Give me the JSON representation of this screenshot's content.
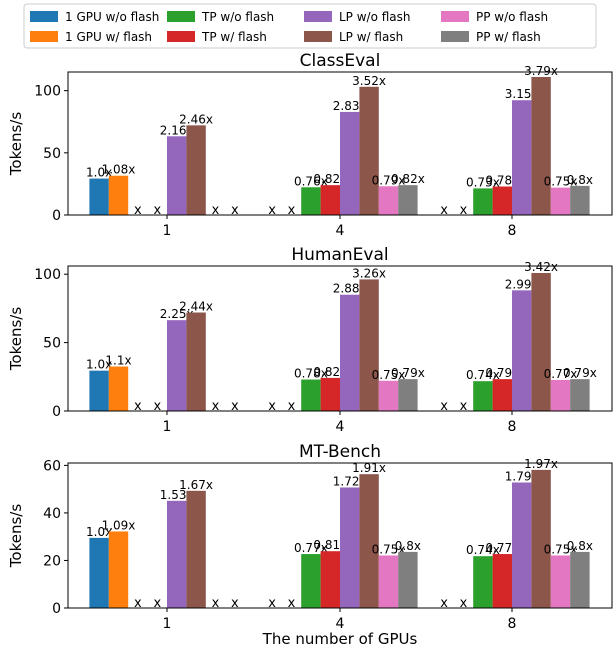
{
  "chart_data": {
    "type": "bar",
    "legend": {
      "placement": "top",
      "entries": [
        {
          "name": "1 GPU w/o flash",
          "color": "#1f77b4"
        },
        {
          "name": "1 GPU w/ flash",
          "color": "#ff7f0e"
        },
        {
          "name": "TP w/o flash",
          "color": "#2ca02c"
        },
        {
          "name": "TP w/ flash",
          "color": "#d62728"
        },
        {
          "name": "LP w/o flash",
          "color": "#9467bd"
        },
        {
          "name": "LP w/ flash",
          "color": "#8c564b"
        },
        {
          "name": "PP w/o flash",
          "color": "#e377c2"
        },
        {
          "name": "PP w/ flash",
          "color": "#7f7f7f"
        }
      ]
    },
    "xlabel": "The number of GPUs",
    "categories": [
      "1",
      "4",
      "8"
    ],
    "missing_marker": "x",
    "panels": [
      {
        "title": "ClassEval",
        "ylabel": "Tokens/s",
        "ylim": [
          0,
          115
        ],
        "yticks": [
          0,
          50,
          100
        ],
        "series": [
          {
            "name": "1 GPU w/o flash",
            "values": [
              29.3,
              null,
              null
            ],
            "labels": [
              "1.0x",
              null,
              null
            ]
          },
          {
            "name": "1 GPU w/ flash",
            "values": [
              31.6,
              null,
              null
            ],
            "labels": [
              "1.08x",
              null,
              null
            ]
          },
          {
            "name": "TP w/o flash",
            "values": [
              null,
              22.3,
              21.4
            ],
            "labels": [
              null,
              "0.76x",
              "0.73x"
            ]
          },
          {
            "name": "TP w/ flash",
            "values": [
              null,
              24.0,
              22.9
            ],
            "labels": [
              null,
              "0.82x",
              "0.78x"
            ]
          },
          {
            "name": "LP w/o flash",
            "values": [
              63.3,
              82.9,
              92.3
            ],
            "labels": [
              "2.16x",
              "2.83x",
              "3.15x"
            ]
          },
          {
            "name": "LP w/ flash",
            "values": [
              72.1,
              103.1,
              111.0
            ],
            "labels": [
              "2.46x",
              "3.52x",
              "3.79x"
            ]
          },
          {
            "name": "PP w/o flash",
            "values": [
              null,
              23.1,
              22.0
            ],
            "labels": [
              null,
              "0.79x",
              "0.75x"
            ]
          },
          {
            "name": "PP w/ flash",
            "values": [
              null,
              24.0,
              23.4
            ],
            "labels": [
              null,
              "0.82x",
              "0.8x"
            ]
          }
        ]
      },
      {
        "title": "HumanEval",
        "ylabel": "Tokens/s",
        "ylim": [
          0,
          106
        ],
        "yticks": [
          0,
          50,
          100
        ],
        "series": [
          {
            "name": "1 GPU w/o flash",
            "values": [
              29.5,
              null,
              null
            ],
            "labels": [
              "1.0x",
              null,
              null
            ]
          },
          {
            "name": "1 GPU w/ flash",
            "values": [
              32.5,
              null,
              null
            ],
            "labels": [
              "1.1x",
              null,
              null
            ]
          },
          {
            "name": "TP w/o flash",
            "values": [
              null,
              23.0,
              21.8
            ],
            "labels": [
              null,
              "0.78x",
              "0.74x"
            ]
          },
          {
            "name": "TP w/ flash",
            "values": [
              null,
              24.2,
              23.3
            ],
            "labels": [
              null,
              "0.82x",
              "0.79x"
            ]
          },
          {
            "name": "LP w/o flash",
            "values": [
              66.4,
              85.0,
              88.2
            ],
            "labels": [
              "2.25x",
              "2.88x",
              "2.99x"
            ]
          },
          {
            "name": "LP w/ flash",
            "values": [
              72.0,
              96.2,
              100.9
            ],
            "labels": [
              "2.44x",
              "3.26x",
              "3.42x"
            ]
          },
          {
            "name": "PP w/o flash",
            "values": [
              null,
              22.1,
              22.7
            ],
            "labels": [
              null,
              "0.75x",
              "0.77x"
            ]
          },
          {
            "name": "PP w/ flash",
            "values": [
              null,
              23.3,
              23.3
            ],
            "labels": [
              null,
              "0.79x",
              "0.79x"
            ]
          }
        ]
      },
      {
        "title": "MT-Bench",
        "ylabel": "Tokens/s",
        "ylim": [
          0,
          61
        ],
        "yticks": [
          0,
          20,
          40,
          60
        ],
        "series": [
          {
            "name": "1 GPU w/o flash",
            "values": [
              29.5,
              null,
              null
            ],
            "labels": [
              "1.0x",
              null,
              null
            ]
          },
          {
            "name": "1 GPU w/ flash",
            "values": [
              32.2,
              null,
              null
            ],
            "labels": [
              "1.09x",
              null,
              null
            ]
          },
          {
            "name": "TP w/o flash",
            "values": [
              null,
              22.7,
              21.8
            ],
            "labels": [
              null,
              "0.77x",
              "0.74x"
            ]
          },
          {
            "name": "TP w/ flash",
            "values": [
              null,
              23.9,
              22.7
            ],
            "labels": [
              null,
              "0.81x",
              "0.77x"
            ]
          },
          {
            "name": "LP w/o flash",
            "values": [
              45.1,
              50.7,
              52.8
            ],
            "labels": [
              "1.53x",
              "1.72x",
              "1.79x"
            ]
          },
          {
            "name": "LP w/ flash",
            "values": [
              49.3,
              56.3,
              58.1
            ],
            "labels": [
              "1.67x",
              "1.91x",
              "1.97x"
            ]
          },
          {
            "name": "PP w/o flash",
            "values": [
              null,
              22.1,
              22.1
            ],
            "labels": [
              null,
              "0.75x",
              "0.75x"
            ]
          },
          {
            "name": "PP w/ flash",
            "values": [
              null,
              23.6,
              23.6
            ],
            "labels": [
              null,
              "0.8x",
              "0.8x"
            ]
          }
        ]
      }
    ]
  }
}
